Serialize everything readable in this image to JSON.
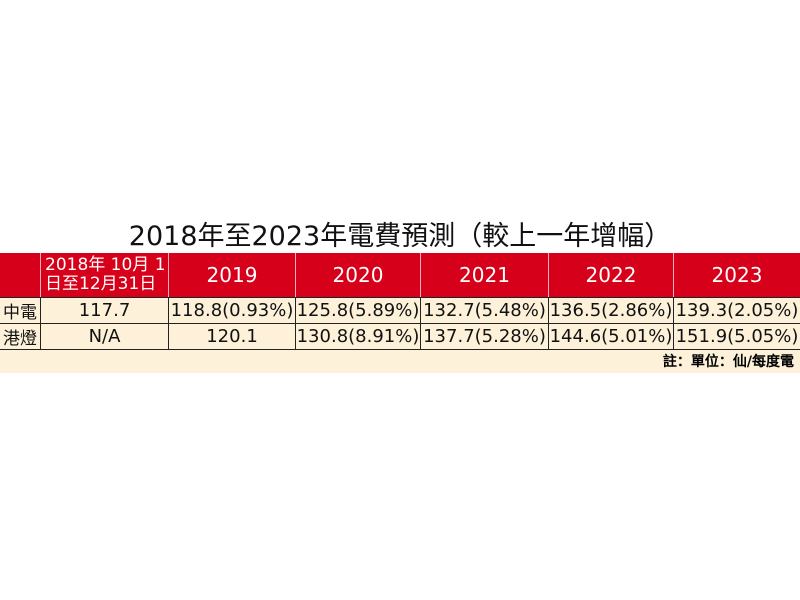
{
  "title": "2018年至2023年電費預測（較上一年增幅）",
  "table": {
    "header": {
      "first": [
        "2018年 10月 1",
        "日至12月31日"
      ],
      "years": [
        "2019",
        "2020",
        "2021",
        "2022",
        "2023"
      ]
    },
    "rows": [
      {
        "label": "中電",
        "cells": [
          "117.7",
          "118.8(0.93%)",
          "125.8(5.89%)",
          "132.7(5.48%)",
          "136.5(2.86%)",
          "139.3(2.05%)"
        ]
      },
      {
        "label": "港燈",
        "cells": [
          "N/A",
          "120.1",
          "130.8(8.91%)",
          "137.7(5.28%)",
          "144.6(5.01%)",
          "151.9(5.05%)"
        ]
      }
    ]
  },
  "note": "註：單位：仙/每度電"
}
